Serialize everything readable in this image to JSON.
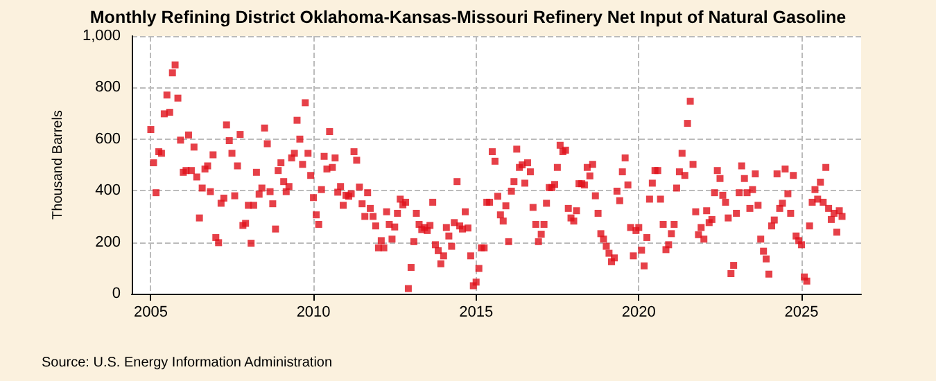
{
  "chart_data": {
    "type": "scatter",
    "title": "Monthly Refining District Oklahoma-Kansas-Missouri Refinery Net Input of Natural Gasoline",
    "ylabel": "Thousand Barrels",
    "annotations": [
      "Source: U.S. Energy Information Administration"
    ],
    "x": [
      "2005-01",
      "2005-02",
      "2005-03",
      "2005-04",
      "2005-05",
      "2005-06",
      "2005-07",
      "2005-08",
      "2005-09",
      "2005-10",
      "2005-11",
      "2005-12",
      "2006-01",
      "2006-02",
      "2006-03",
      "2006-04",
      "2006-05",
      "2006-06",
      "2006-07",
      "2006-08",
      "2006-09",
      "2006-10",
      "2006-11",
      "2006-12",
      "2007-01",
      "2007-02",
      "2007-03",
      "2007-04",
      "2007-05",
      "2007-06",
      "2007-07",
      "2007-08",
      "2007-09",
      "2007-10",
      "2007-11",
      "2007-12",
      "2008-01",
      "2008-02",
      "2008-03",
      "2008-04",
      "2008-05",
      "2008-06",
      "2008-07",
      "2008-08",
      "2008-09",
      "2008-10",
      "2008-11",
      "2008-12",
      "2009-01",
      "2009-02",
      "2009-03",
      "2009-04",
      "2009-05",
      "2009-06",
      "2009-07",
      "2009-08",
      "2009-09",
      "2009-10",
      "2009-11",
      "2009-12",
      "2010-01",
      "2010-02",
      "2010-03",
      "2010-04",
      "2010-05",
      "2010-06",
      "2010-07",
      "2010-08",
      "2010-09",
      "2010-10",
      "2010-11",
      "2010-12",
      "2011-01",
      "2011-02",
      "2011-03",
      "2011-04",
      "2011-05",
      "2011-06",
      "2011-07",
      "2011-08",
      "2011-09",
      "2011-10",
      "2011-11",
      "2011-12",
      "2012-01",
      "2012-02",
      "2012-03",
      "2012-04",
      "2012-05",
      "2012-06",
      "2012-07",
      "2012-08",
      "2012-09",
      "2012-10",
      "2012-11",
      "2012-12",
      "2013-01",
      "2013-02",
      "2013-03",
      "2013-04",
      "2013-05",
      "2013-06",
      "2013-07",
      "2013-08",
      "2013-09",
      "2013-10",
      "2013-11",
      "2013-12",
      "2014-01",
      "2014-02",
      "2014-03",
      "2014-04",
      "2014-05",
      "2014-06",
      "2014-07",
      "2014-08",
      "2014-09",
      "2014-10",
      "2014-11",
      "2014-12",
      "2015-01",
      "2015-02",
      "2015-03",
      "2015-04",
      "2015-05",
      "2015-06",
      "2015-07",
      "2015-08",
      "2015-09",
      "2015-10",
      "2015-11",
      "2015-12",
      "2016-01",
      "2016-02",
      "2016-03",
      "2016-04",
      "2016-05",
      "2016-06",
      "2016-07",
      "2016-08",
      "2016-09",
      "2016-10",
      "2016-11",
      "2016-12",
      "2017-01",
      "2017-02",
      "2017-03",
      "2017-04",
      "2017-05",
      "2017-06",
      "2017-07",
      "2017-08",
      "2017-09",
      "2017-10",
      "2017-11",
      "2017-12",
      "2018-01",
      "2018-02",
      "2018-03",
      "2018-04",
      "2018-05",
      "2018-06",
      "2018-07",
      "2018-08",
      "2018-09",
      "2018-10",
      "2018-11",
      "2018-12",
      "2019-01",
      "2019-02",
      "2019-03",
      "2019-04",
      "2019-05",
      "2019-06",
      "2019-07",
      "2019-08",
      "2019-09",
      "2019-10",
      "2019-11",
      "2019-12",
      "2020-01",
      "2020-02",
      "2020-03",
      "2020-04",
      "2020-05",
      "2020-06",
      "2020-07",
      "2020-08",
      "2020-09",
      "2020-10",
      "2020-11",
      "2020-12",
      "2021-01",
      "2021-02",
      "2021-03",
      "2021-04",
      "2021-05",
      "2021-06",
      "2021-07",
      "2021-08",
      "2021-09",
      "2021-10",
      "2021-11",
      "2021-12",
      "2022-01",
      "2022-02",
      "2022-03",
      "2022-04",
      "2022-05",
      "2022-06",
      "2022-07",
      "2022-08",
      "2022-09",
      "2022-10",
      "2022-11",
      "2022-12",
      "2023-01",
      "2023-02",
      "2023-03",
      "2023-04",
      "2023-05",
      "2023-06",
      "2023-07",
      "2023-08",
      "2023-09",
      "2023-10",
      "2023-11",
      "2023-12",
      "2024-01",
      "2024-02",
      "2024-03",
      "2024-04",
      "2024-05",
      "2024-06",
      "2024-07",
      "2024-08",
      "2024-09",
      "2024-10",
      "2024-11",
      "2024-12",
      "2025-01",
      "2025-02",
      "2025-03",
      "2025-04",
      "2025-05",
      "2025-06",
      "2025-07",
      "2025-08",
      "2025-09",
      "2025-10",
      "2025-11",
      "2025-12",
      "2026-01",
      "2026-02",
      "2026-03",
      "2026-04"
    ],
    "series": [
      {
        "color": "#e0101a",
        "values": [
          637,
          508,
          392,
          551,
          545,
          698,
          771,
          704,
          857,
          888,
          759,
          596,
          471,
          478,
          616,
          478,
          569,
          453,
          294,
          410,
          484,
          496,
          396,
          539,
          218,
          198,
          351,
          371,
          655,
          594,
          545,
          380,
          496,
          618,
          265,
          273,
          343,
          196,
          343,
          471,
          386,
          410,
          643,
          582,
          396,
          349,
          251,
          478,
          508,
          435,
          396,
          416,
          527,
          545,
          673,
          600,
          502,
          741,
          545,
          459,
          373,
          306,
          269,
          404,
          533,
          484,
          629,
          490,
          527,
          394,
          416,
          343,
          382,
          378,
          388,
          551,
          518,
          414,
          349,
          300,
          392,
          331,
          300,
          263,
          178,
          206,
          178,
          318,
          269,
          212,
          259,
          312,
          367,
          345,
          355,
          20,
          102,
          202,
          312,
          269,
          249,
          257,
          245,
          265,
          355,
          190,
          167,
          116,
          147,
          257,
          224,
          184,
          276,
          435,
          263,
          251,
          318,
          255,
          147,
          31,
          45,
          98,
          178,
          178,
          355,
          355,
          551,
          514,
          378,
          306,
          282,
          341,
          202,
          398,
          435,
          561,
          490,
          500,
          429,
          508,
          473,
          335,
          269,
          202,
          231,
          269,
          351,
          412,
          412,
          424,
          490,
          576,
          551,
          557,
          331,
          294,
          282,
          322,
          427,
          427,
          422,
          490,
          457,
          502,
          380,
          312,
          233,
          212,
          184,
          157,
          124,
          139,
          398,
          361,
          473,
          527,
          422,
          257,
          147,
          245,
          257,
          169,
          108,
          218,
          367,
          429,
          478,
          478,
          367,
          269,
          171,
          190,
          233,
          269,
          410,
          473,
          545,
          459,
          661,
          747,
          502,
          318,
          229,
          257,
          212,
          322,
          276,
          288,
          392,
          478,
          447,
          382,
          355,
          294,
          78,
          110,
          312,
          392,
          496,
          447,
          392,
          331,
          404,
          465,
          343,
          212,
          165,
          135,
          76,
          263,
          286,
          465,
          331,
          351,
          484,
          388,
          312,
          459,
          224,
          206,
          190,
          65,
          49,
          263,
          355,
          404,
          367,
          433,
          355,
          490,
          331,
          288,
          312,
          239,
          322,
          300
        ]
      }
    ],
    "xlim": [
      "2004-06",
      "2026-11"
    ],
    "xticks": [
      "2005",
      "2010",
      "2015",
      "2020",
      "2025"
    ],
    "ylim": [
      0,
      1000
    ],
    "yticks": [
      0,
      200,
      400,
      600,
      800,
      {
        "value": 1000,
        "label": "1,000"
      }
    ],
    "grid": true,
    "marker": "square"
  }
}
